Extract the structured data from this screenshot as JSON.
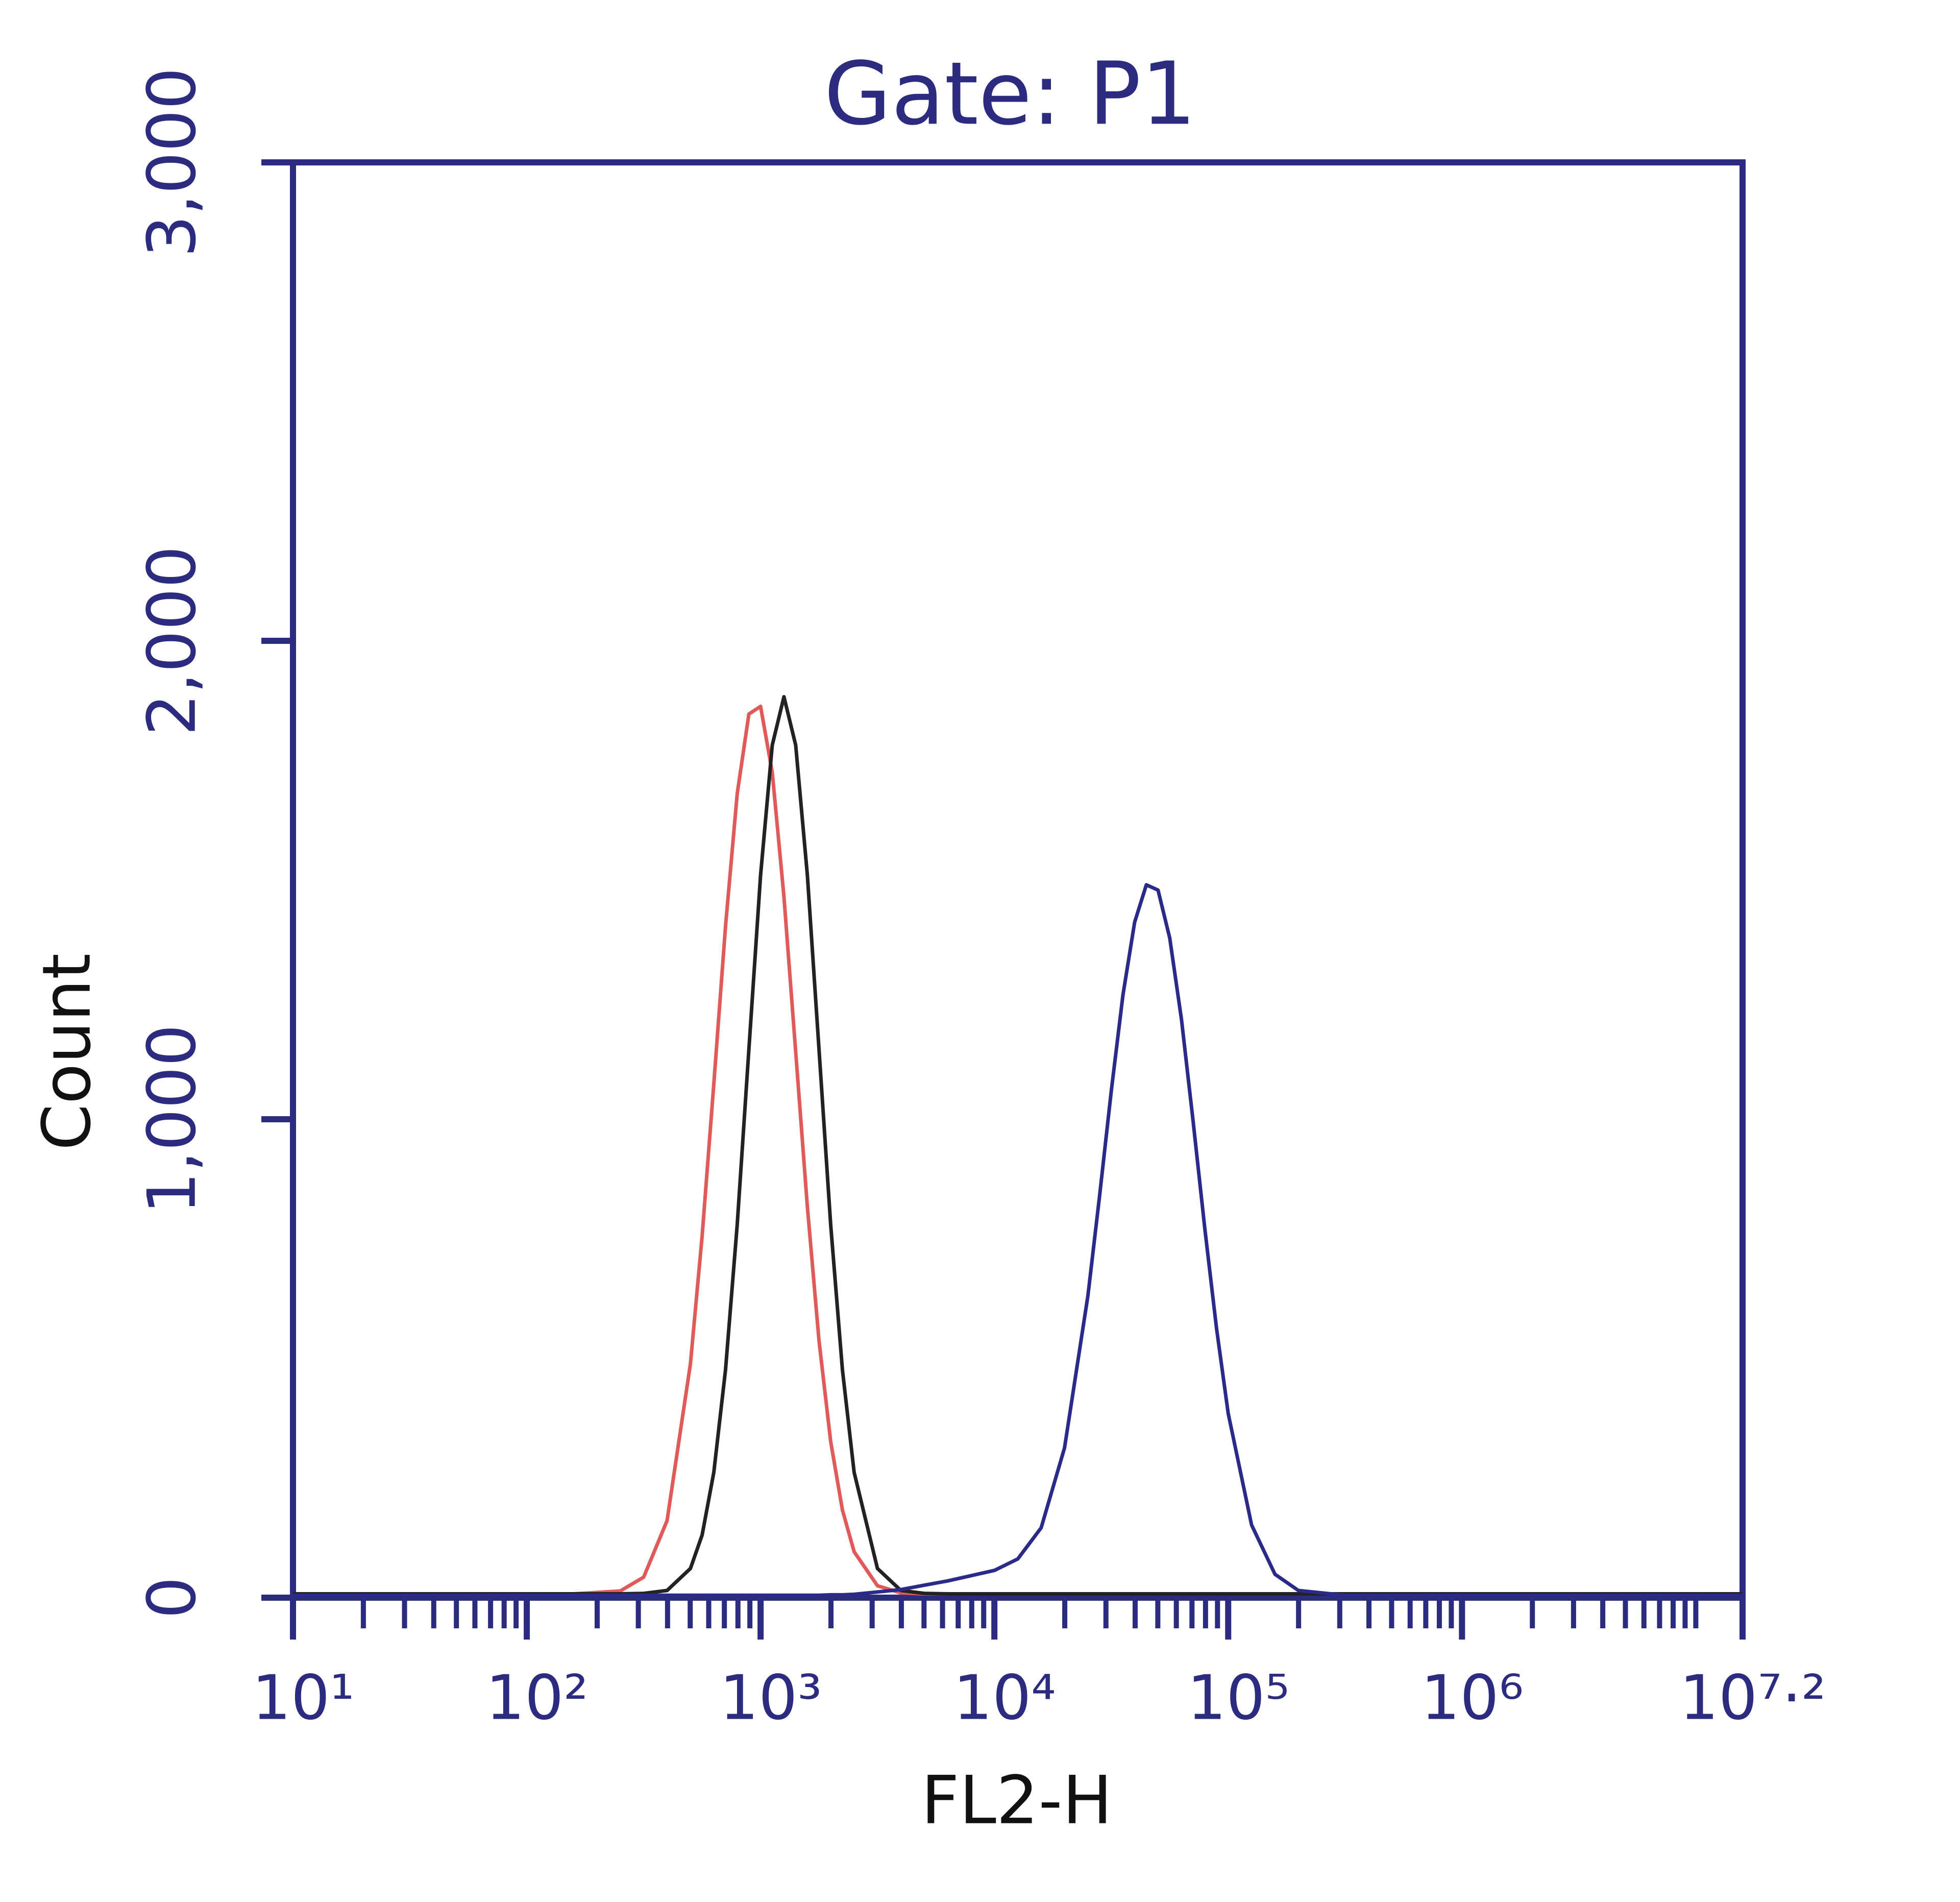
{
  "chart_data": {
    "type": "line",
    "title": "Gate: P1",
    "xlabel": "FL2-H",
    "ylabel": "Count",
    "xscale": "log",
    "xlim": [
      10,
      15848931.92
    ],
    "xticks": [
      {
        "value": 10,
        "label": "10¹"
      },
      {
        "value": 100,
        "label": "10²"
      },
      {
        "value": 1000,
        "label": "10³"
      },
      {
        "value": 10000,
        "label": "10⁴"
      },
      {
        "value": 100000,
        "label": "10⁵"
      },
      {
        "value": 1000000,
        "label": "10⁶"
      },
      {
        "value": 15848931.92,
        "label": "10⁷·²"
      }
    ],
    "xminorticks": [
      20,
      30,
      40,
      50,
      60,
      70,
      80,
      90,
      200,
      300,
      400,
      500,
      600,
      700,
      800,
      900,
      2000,
      3000,
      4000,
      5000,
      6000,
      7000,
      8000,
      9000,
      20000,
      30000,
      40000,
      50000,
      60000,
      70000,
      80000,
      90000,
      200000,
      300000,
      400000,
      500000,
      600000,
      700000,
      800000,
      900000,
      2000000,
      3000000,
      4000000,
      5000000,
      6000000,
      7000000,
      8000000,
      9000000,
      10000000
    ],
    "ylim": [
      0,
      3000
    ],
    "yticks": [
      0,
      {
        "value": 1000,
        "label": "1,000"
      },
      {
        "value": 2000,
        "label": "2,000"
      },
      {
        "value": 3000,
        "label": "3,000"
      }
    ],
    "axis_color": "#2b2b80",
    "x": [
      10,
      31.62,
      100,
      158.5,
      251.2,
      316.2,
      398.1,
      501.2,
      562.3,
      631,
      707.9,
      794.3,
      891.3,
      1000,
      1122,
      1259,
      1413,
      1585,
      1778,
      1995,
      2239,
      2512,
      3162,
      3981,
      5012,
      6310,
      7943,
      10000,
      12590,
      15850,
      19950,
      25120,
      28180,
      31620,
      35480,
      39810,
      44670,
      50120,
      56230,
      63100,
      70790,
      79430,
      89130,
      100000,
      125900,
      158500,
      199500,
      316200,
      1000000,
      3162000,
      10000000,
      15850000
    ],
    "series": [
      {
        "color": "#e05a5a",
        "values": [
          8,
          8,
          8,
          8,
          14,
          43,
          161,
          489,
          756,
          1074,
          1403,
          1680,
          1847,
          1863,
          1725,
          1465,
          1141,
          817,
          537,
          326,
          183,
          96,
          25,
          10,
          8,
          8,
          8,
          8,
          8,
          8,
          8,
          8,
          8,
          8,
          8,
          8,
          8,
          8,
          8,
          8,
          8,
          8,
          8,
          8,
          8,
          8,
          8,
          8,
          8,
          8,
          8,
          8
        ]
      },
      {
        "color": "#222222",
        "values": [
          8,
          8,
          8,
          8,
          8,
          9,
          15,
          61,
          131,
          262,
          476,
          779,
          1146,
          1510,
          1782,
          1883,
          1782,
          1510,
          1146,
          779,
          476,
          262,
          61,
          15,
          9,
          8,
          8,
          8,
          8,
          8,
          8,
          8,
          8,
          8,
          8,
          8,
          8,
          8,
          8,
          8,
          8,
          8,
          8,
          8,
          8,
          8,
          8,
          8,
          8,
          8,
          8,
          8
        ]
      },
      {
        "color": "#2a2a8a",
        "values": [
          5,
          5,
          5,
          5,
          5,
          5,
          5,
          5,
          5,
          5,
          5,
          5,
          5,
          5,
          5,
          5,
          5,
          5,
          5,
          6,
          6,
          7,
          12,
          17,
          26,
          35,
          46,
          57,
          81,
          146,
          313,
          631,
          840,
          1059,
          1260,
          1412,
          1490,
          1479,
          1379,
          1209,
          996,
          772,
          563,
          385,
          152,
          49,
          15,
          5,
          5,
          5,
          5,
          5
        ]
      }
    ]
  }
}
